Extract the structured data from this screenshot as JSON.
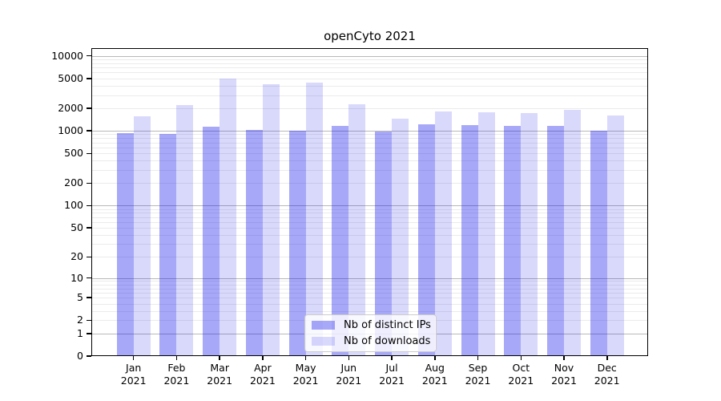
{
  "chart_data": {
    "type": "bar",
    "title": "openCyto 2021",
    "y_scale": "log10(value+1)",
    "ylim": [
      0,
      12600
    ],
    "grid": "horizontal major and minor gridlines",
    "legend_position": "bottom-center inside plot",
    "y_ticks": [
      "0",
      "1",
      "2",
      "5",
      "10",
      "20",
      "50",
      "100",
      "200",
      "500",
      "1000",
      "2000",
      "5000",
      "10000"
    ],
    "categories": [
      {
        "month": "Jan",
        "year": "2021"
      },
      {
        "month": "Feb",
        "year": "2021"
      },
      {
        "month": "Mar",
        "year": "2021"
      },
      {
        "month": "Apr",
        "year": "2021"
      },
      {
        "month": "May",
        "year": "2021"
      },
      {
        "month": "Jun",
        "year": "2021"
      },
      {
        "month": "Jul",
        "year": "2021"
      },
      {
        "month": "Aug",
        "year": "2021"
      },
      {
        "month": "Sep",
        "year": "2021"
      },
      {
        "month": "Oct",
        "year": "2021"
      },
      {
        "month": "Nov",
        "year": "2021"
      },
      {
        "month": "Dec",
        "year": "2021"
      }
    ],
    "series": [
      {
        "name": "Nb of distinct IPs",
        "color": "rgba(0,0,235,0.34)",
        "color_on_white": "#a8a8f8",
        "values": [
          940,
          910,
          1130,
          1040,
          1010,
          1170,
          990,
          1220,
          1200,
          1170,
          1165,
          1000
        ]
      },
      {
        "name": "Nb of downloads",
        "color": "rgba(0,0,235,0.15)",
        "color_on_white": "#d8d8fa",
        "values": [
          1560,
          2230,
          4930,
          4220,
          4440,
          2260,
          1440,
          1800,
          1770,
          1730,
          1920,
          1590
        ]
      }
    ],
    "colors": {
      "frame": "#000000",
      "grid_major": "#b9b9b9",
      "grid_minor": "#ebebeb",
      "legend_border": "#cccccc",
      "background": "#ffffff"
    }
  }
}
